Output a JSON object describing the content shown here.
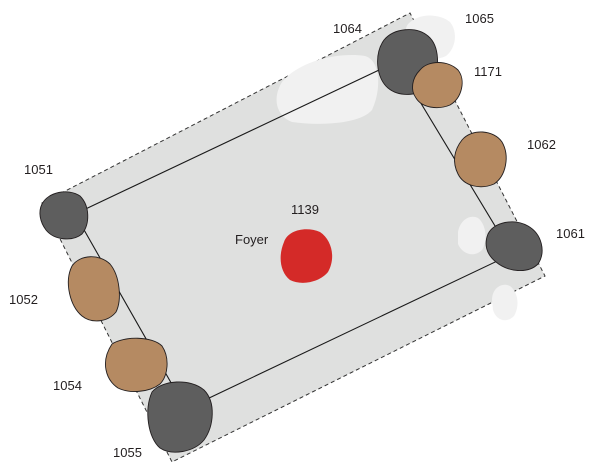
{
  "colors": {
    "background": "#ffffff",
    "floor_fill": "#dfe0df",
    "floor_outline": "#333333",
    "room_outline": "#1a1a1a",
    "disturbance_patch": "#f1f1f1",
    "dark_stone": "#5e5e5e",
    "brown_stone": "#b58a62",
    "hearth_red": "#d42a28",
    "label_text": "#231f20"
  },
  "features": [
    {
      "id": "1064",
      "kind": "dark-stone"
    },
    {
      "id": "1065",
      "kind": "light-patch"
    },
    {
      "id": "1171",
      "kind": "brown-stone"
    },
    {
      "id": "1062",
      "kind": "brown-stone"
    },
    {
      "id": "1061",
      "kind": "dark-stone"
    },
    {
      "id": "1051",
      "kind": "dark-stone"
    },
    {
      "id": "1052",
      "kind": "brown-stone"
    },
    {
      "id": "1054",
      "kind": "brown-stone"
    },
    {
      "id": "1055",
      "kind": "dark-stone"
    }
  ],
  "hearth": {
    "id": "1139",
    "label": "Foyer",
    "kind": "hearth"
  }
}
